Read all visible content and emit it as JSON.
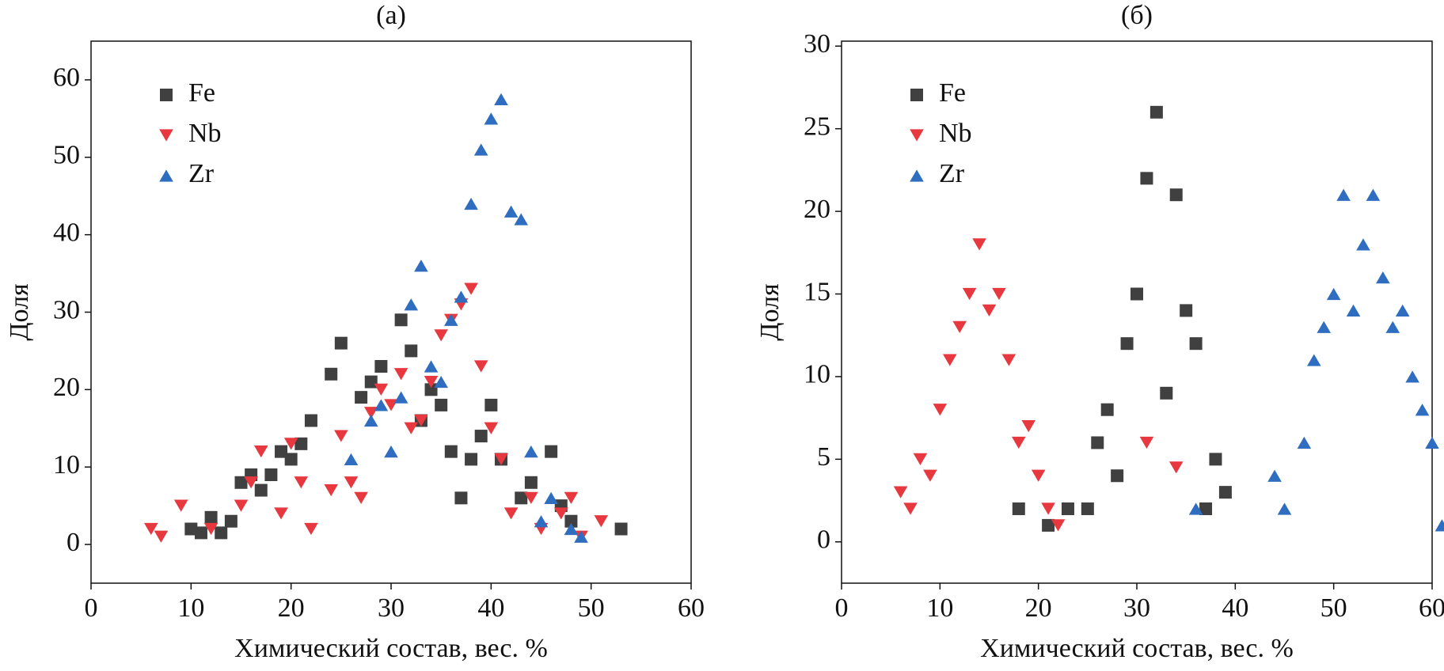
{
  "chart_data": [
    {
      "type": "scatter",
      "title": "(a)",
      "xlabel": "Химический состав, вес. %",
      "ylabel": "Доля",
      "xlim": [
        0,
        60
      ],
      "ylim": [
        -5,
        65
      ],
      "xticks": [
        0,
        10,
        20,
        30,
        40,
        50,
        60
      ],
      "yticks": [
        0,
        10,
        20,
        30,
        40,
        50,
        60
      ],
      "legend": "upper left",
      "series": [
        {
          "name": "Fe",
          "color": "#404040",
          "marker": "square",
          "x": [
            10,
            11,
            12,
            13,
            14,
            15,
            16,
            17,
            18,
            19,
            20,
            21,
            22,
            24,
            25,
            27,
            28,
            29,
            31,
            32,
            33,
            34,
            35,
            36,
            37,
            38,
            39,
            40,
            41,
            43,
            44,
            46,
            47,
            48,
            53
          ],
          "values": [
            2,
            1.5,
            3.5,
            1.5,
            3,
            8,
            9,
            7,
            9,
            12,
            11,
            13,
            16,
            22,
            26,
            19,
            21,
            23,
            29,
            25,
            16,
            20,
            18,
            12,
            6,
            11,
            14,
            18,
            11,
            6,
            8,
            12,
            5,
            3,
            2
          ]
        },
        {
          "name": "Nb",
          "color": "#e8383f",
          "marker": "triangle-down",
          "x": [
            6,
            7,
            9,
            12,
            15,
            16,
            17,
            19,
            20,
            21,
            22,
            24,
            25,
            26,
            27,
            28,
            29,
            30,
            31,
            32,
            33,
            34,
            35,
            36,
            37,
            38,
            39,
            40,
            41,
            42,
            44,
            45,
            47,
            48,
            49,
            51
          ],
          "values": [
            2,
            1,
            5,
            2,
            5,
            8,
            12,
            4,
            13,
            8,
            2,
            7,
            14,
            8,
            6,
            17,
            20,
            18,
            22,
            15,
            16,
            21,
            27,
            29,
            31,
            33,
            23,
            15,
            11,
            4,
            6,
            2,
            4,
            6,
            1,
            3
          ]
        },
        {
          "name": "Zr",
          "color": "#2e6dbf",
          "marker": "triangle-up",
          "x": [
            26,
            28,
            29,
            30,
            31,
            32,
            33,
            34,
            35,
            36,
            37,
            38,
            39,
            40,
            41,
            42,
            43,
            44,
            45,
            46,
            48,
            49
          ],
          "values": [
            11,
            16,
            18,
            12,
            19,
            31,
            36,
            23,
            21,
            29,
            32,
            44,
            51,
            55,
            57.5,
            43,
            42,
            12,
            3,
            6,
            2,
            1
          ]
        }
      ]
    },
    {
      "type": "scatter",
      "title": "(б)",
      "xlabel": "Химический состав, вес. %",
      "ylabel": "Доля",
      "xlim": [
        0,
        60
      ],
      "ylim": [
        -2.5,
        30.3
      ],
      "xticks": [
        0,
        10,
        20,
        30,
        40,
        50,
        60
      ],
      "yticks": [
        0,
        5,
        10,
        15,
        20,
        25,
        30
      ],
      "legend": "upper left",
      "series": [
        {
          "name": "Fe",
          "color": "#404040",
          "marker": "square",
          "x": [
            18,
            21,
            23,
            25,
            26,
            27,
            28,
            29,
            30,
            31,
            32,
            33,
            34,
            35,
            36,
            37,
            38,
            39
          ],
          "values": [
            2,
            1,
            2,
            2,
            6,
            8,
            4,
            12,
            15,
            22,
            26,
            9,
            21,
            14,
            12,
            2,
            5,
            3
          ]
        },
        {
          "name": "Nb",
          "color": "#e8383f",
          "marker": "triangle-down",
          "x": [
            6,
            7,
            8,
            9,
            10,
            11,
            12,
            13,
            14,
            15,
            16,
            17,
            18,
            19,
            20,
            21,
            22,
            31,
            34
          ],
          "values": [
            3,
            2,
            5,
            4,
            8,
            11,
            13,
            15,
            18,
            14,
            15,
            11,
            6,
            7,
            4,
            2,
            1,
            6,
            4.5
          ]
        },
        {
          "name": "Zr",
          "color": "#2e6dbf",
          "marker": "triangle-up",
          "x": [
            36,
            44,
            45,
            47,
            48,
            49,
            50,
            51,
            52,
            53,
            54,
            55,
            56,
            57,
            58,
            59,
            60,
            61
          ],
          "values": [
            2,
            4,
            2,
            6,
            11,
            13,
            15,
            21,
            14,
            18,
            21,
            16,
            13,
            14,
            10,
            8,
            6,
            1
          ]
        }
      ]
    }
  ]
}
